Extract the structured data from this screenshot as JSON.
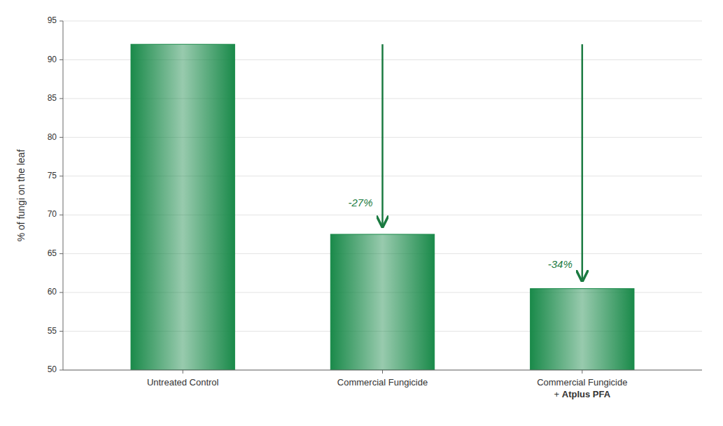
{
  "chart_data": {
    "type": "bar",
    "categories": [
      "Untreated Control",
      "Commercial Fungicide",
      "Commercial Fungicide + Atplus PFA"
    ],
    "values": [
      92.0,
      67.5,
      60.5
    ],
    "color": "#1a8a4a",
    "y_label": "% of fungi on the leaf",
    "ylim": [
      50,
      95
    ],
    "yticks": [
      50,
      55,
      60,
      65,
      70,
      75,
      80,
      85,
      90,
      95
    ],
    "grid": true,
    "annotations": [
      {
        "text": "-27%",
        "category": 1,
        "y": 71.5,
        "arrow": [
          92.0,
          68.5
        ],
        "color": "#1a7a40"
      },
      {
        "text": "-34%",
        "category": 2,
        "y": 63.5,
        "arrow": [
          92.0,
          61.5
        ],
        "color": "#1a7a40"
      }
    ]
  }
}
